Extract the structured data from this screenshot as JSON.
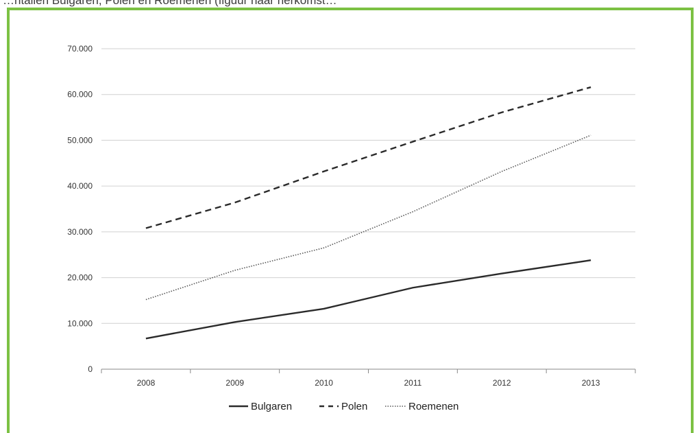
{
  "caption": "…ntallen Bulgaren, Polen en Roemenen (figuur naar herkomst…",
  "chart_data": {
    "type": "line",
    "categories": [
      "2008",
      "2009",
      "2010",
      "2011",
      "2012",
      "2013"
    ],
    "series": [
      {
        "name": "Bulgaren",
        "values": [
          6700,
          10300,
          13200,
          17800,
          20900,
          23800
        ],
        "stroke": "#2a2a2a",
        "dash": "solid"
      },
      {
        "name": "Polen",
        "values": [
          30800,
          36400,
          43200,
          49700,
          56100,
          61600
        ],
        "stroke": "#2a2a2a",
        "dash": "dashed"
      },
      {
        "name": "Roemenen",
        "values": [
          15200,
          21600,
          26500,
          34400,
          43200,
          51100
        ],
        "stroke": "#555555",
        "dash": "dotted"
      }
    ],
    "yticks": [
      "0",
      "10.000",
      "20.000",
      "30.000",
      "40.000",
      "50.000",
      "60.000",
      "70.000"
    ],
    "ylim": [
      0,
      70000
    ],
    "grid": true,
    "legend_position": "bottom",
    "colors": {
      "frame": "#7cc143",
      "grid": "#d0d0d0",
      "axis": "#888888"
    }
  }
}
